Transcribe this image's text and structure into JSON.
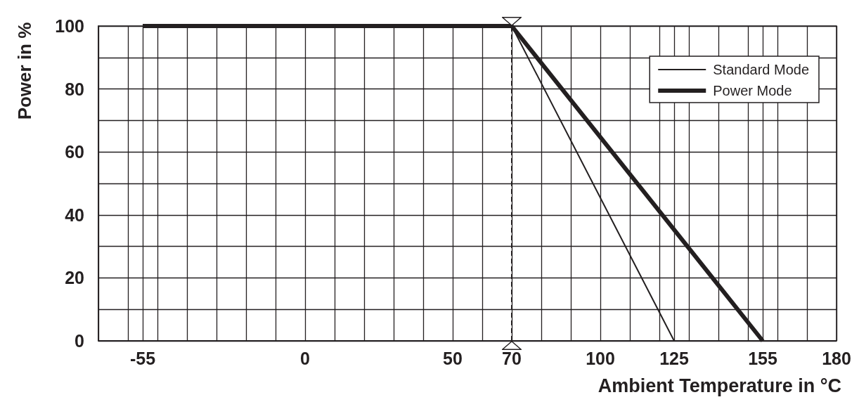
{
  "chart_data": {
    "type": "line",
    "xlabel": "Ambient Temperature in °C",
    "ylabel": "Power in %",
    "series": [
      {
        "name": "Standard Mode",
        "color": "#231f20",
        "x": [
          -55,
          70,
          125
        ],
        "values": [
          100,
          100,
          0
        ]
      },
      {
        "name": "Power Mode",
        "color": "#231f20",
        "x": [
          -55,
          70,
          155
        ],
        "values": [
          100,
          100,
          0
        ]
      }
    ],
    "xlim": [
      -70,
      180
    ],
    "xticks": [
      {
        "value": -70,
        "label": null
      },
      {
        "value": -60,
        "label": null
      },
      -55,
      {
        "value": -50,
        "label": null
      },
      {
        "value": -40,
        "label": null
      },
      {
        "value": -30,
        "label": null
      },
      {
        "value": -20,
        "label": null
      },
      {
        "value": -10,
        "label": null
      },
      0,
      {
        "value": 10,
        "label": null
      },
      {
        "value": 20,
        "label": null
      },
      {
        "value": 30,
        "label": null
      },
      {
        "value": 40,
        "label": null
      },
      50,
      {
        "value": 60,
        "label": null
      },
      70,
      {
        "value": 80,
        "label": null
      },
      {
        "value": 90,
        "label": null
      },
      100,
      {
        "value": 110,
        "label": null
      },
      {
        "value": 120,
        "label": null
      },
      125,
      {
        "value": 130,
        "label": null
      },
      {
        "value": 140,
        "label": null
      },
      {
        "value": 150,
        "label": null
      },
      155,
      {
        "value": 160,
        "label": null
      },
      {
        "value": 170,
        "label": null
      },
      180
    ],
    "ylim": [
      0,
      100
    ],
    "yticks": [
      0,
      {
        "value": 10,
        "label": null
      },
      20,
      {
        "value": 30,
        "label": null
      },
      40,
      {
        "value": 50,
        "label": null
      },
      60,
      {
        "value": 70,
        "label": null
      },
      80,
      {
        "value": 90,
        "label": null
      },
      100
    ],
    "ref_lines": [
      {
        "axis": "x",
        "value": 70,
        "color": "#231f20",
        "line_style": "dashed"
      }
    ],
    "grid": true,
    "legend": "top right",
    "marker": "none",
    "line_style": "solid"
  }
}
